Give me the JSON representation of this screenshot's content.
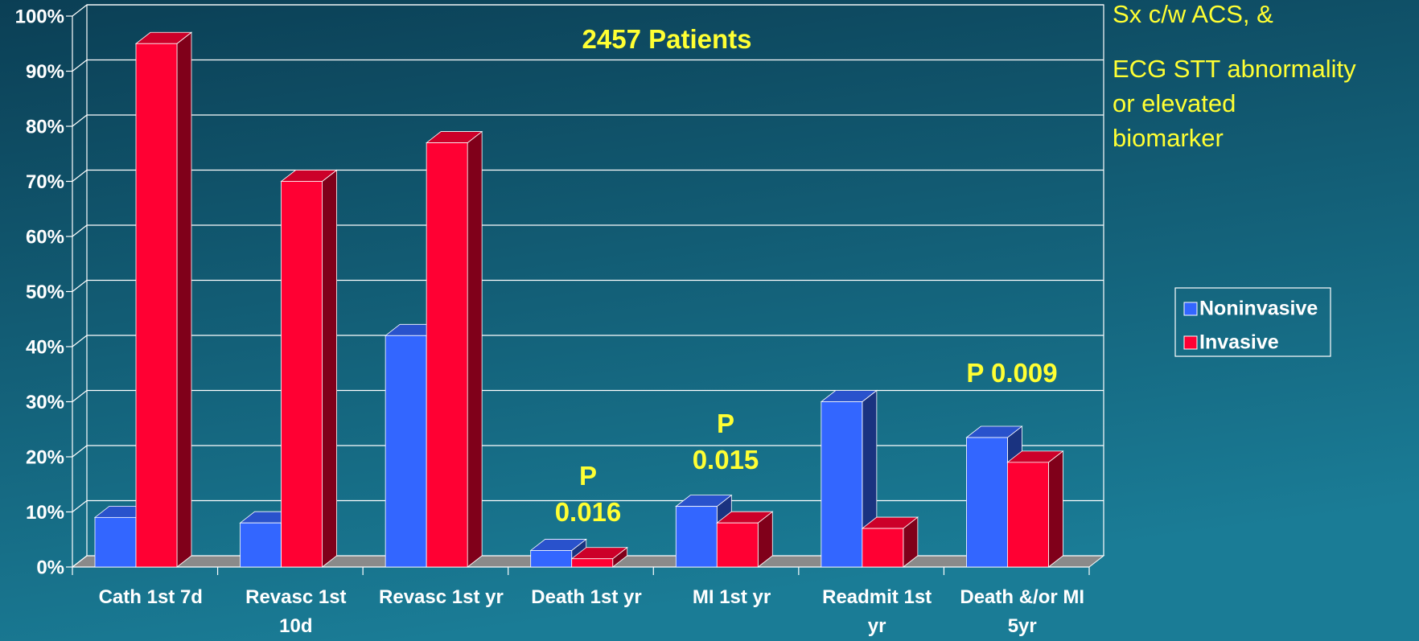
{
  "chart_data": {
    "type": "bar3d",
    "categories": [
      "Cath 1st 7d",
      "Revasc 1st 10d",
      "Revasc 1st yr",
      "Death 1st yr",
      "MI 1st yr",
      "Readmit 1st yr",
      "Death &/or MI 5yr"
    ],
    "series": [
      {
        "name": "Noninvasive",
        "color": "#3366ff",
        "values": [
          9,
          8,
          42,
          3,
          11,
          30,
          23.5
        ]
      },
      {
        "name": "Invasive",
        "color": "#ff0033",
        "values": [
          95,
          70,
          77,
          1.5,
          8,
          7,
          19
        ]
      }
    ],
    "ylim": [
      0,
      100
    ],
    "yticks": [
      {
        "value": 0,
        "label": "0%"
      },
      {
        "value": 10,
        "label": "10%"
      },
      {
        "value": 20,
        "label": "20%"
      },
      {
        "value": 30,
        "label": "30%"
      },
      {
        "value": 40,
        "label": "40%"
      },
      {
        "value": 50,
        "label": "50%"
      },
      {
        "value": 60,
        "label": "60%"
      },
      {
        "value": 70,
        "label": "70%"
      },
      {
        "value": 80,
        "label": "80%"
      },
      {
        "value": 90,
        "label": "90%"
      },
      {
        "value": 100,
        "label": "100%"
      }
    ],
    "grid": true,
    "legend": "right",
    "annotations": [
      "2457 Patients",
      "P 0.016",
      "P 0.015",
      "P 0.009"
    ],
    "side_notes": [
      "Sx c/w ACS, &",
      "ECG STT abnormality or elevated biomarker"
    ]
  }
}
